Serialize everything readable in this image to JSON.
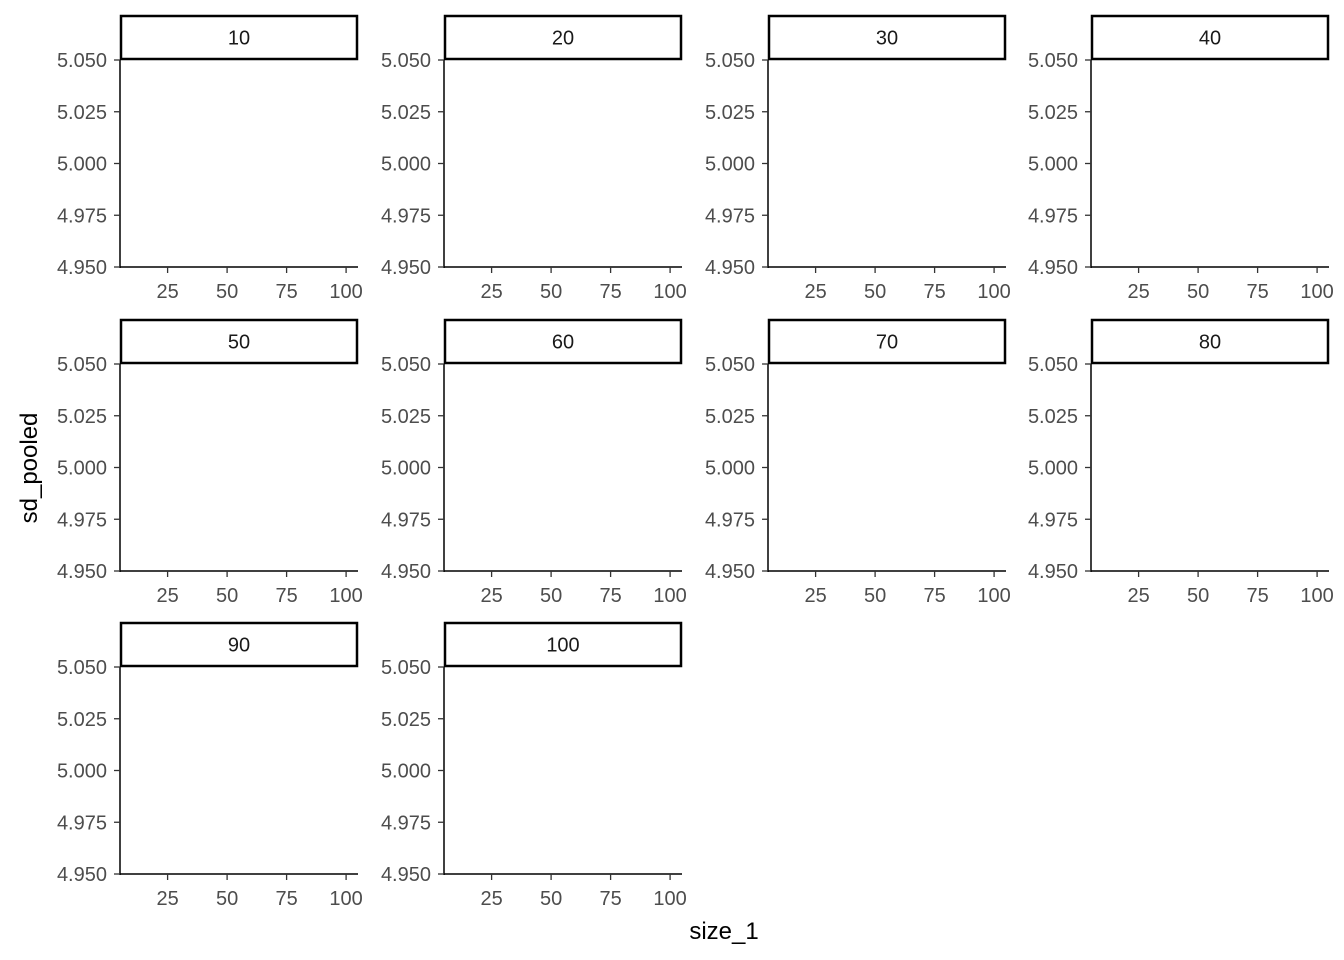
{
  "chart_data": {
    "type": "scatter",
    "facet_variable_values": [
      "10",
      "20",
      "30",
      "40",
      "50",
      "60",
      "70",
      "80",
      "90",
      "100"
    ],
    "xlabel": "size_1",
    "ylabel": "sd_pooled",
    "x_ticks": [
      "25",
      "50",
      "75",
      "100"
    ],
    "x_tick_values": [
      25,
      50,
      75,
      100
    ],
    "y_ticks": [
      "4.950",
      "4.975",
      "5.000",
      "5.025",
      "5.050"
    ],
    "y_tick_values": [
      4.95,
      4.975,
      5.0,
      5.025,
      5.05
    ],
    "xlim": [
      5,
      105
    ],
    "ylim": [
      4.95,
      5.05
    ],
    "grid": false,
    "facet_columns": 4,
    "series": []
  }
}
